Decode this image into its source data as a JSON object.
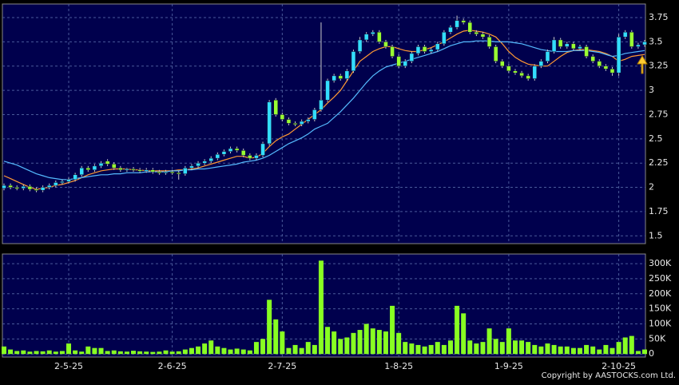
{
  "chart_data": [
    {
      "type": "candlestick",
      "up_color": "#33ddff",
      "down_color": "#99ff33",
      "ylim": [
        1.42,
        3.89
      ],
      "yticks": [
        1.5,
        1.75,
        2,
        2.25,
        2.5,
        2.75,
        3,
        3.25,
        3.5,
        3.75
      ],
      "grid": true,
      "open": [
        1.99,
        2.02,
        2.0,
        1.99,
        2.01,
        1.98,
        1.97,
        2.0,
        2.02,
        2.05,
        2.06,
        2.08,
        2.13,
        2.2,
        2.18,
        2.22,
        2.27,
        2.24,
        2.2,
        2.18,
        2.19,
        2.18,
        2.17,
        2.18,
        2.16,
        2.15,
        2.16,
        2.15,
        2.14,
        2.2,
        2.22,
        2.25,
        2.27,
        2.3,
        2.34,
        2.37,
        2.4,
        2.38,
        2.33,
        2.3,
        2.33,
        2.45,
        2.9,
        2.75,
        2.7,
        2.66,
        2.65,
        2.68,
        2.7,
        2.8,
        2.9,
        3.1,
        3.15,
        3.12,
        3.2,
        3.4,
        3.52,
        3.58,
        3.6,
        3.5,
        3.45,
        3.35,
        3.25,
        3.3,
        3.38,
        3.45,
        3.4,
        3.42,
        3.48,
        3.6,
        3.65,
        3.72,
        3.7,
        3.6,
        3.58,
        3.55,
        3.45,
        3.3,
        3.25,
        3.2,
        3.18,
        3.15,
        3.12,
        3.25,
        3.3,
        3.4,
        3.52,
        3.45,
        3.48,
        3.43,
        3.45,
        3.35,
        3.3,
        3.25,
        3.22,
        3.18,
        3.55,
        3.6,
        3.45,
        3.47
      ],
      "high": [
        2.04,
        2.04,
        2.02,
        2.03,
        2.03,
        2.0,
        2.02,
        2.04,
        2.07,
        2.08,
        2.1,
        2.15,
        2.22,
        2.22,
        2.24,
        2.27,
        2.29,
        2.26,
        2.22,
        2.2,
        2.21,
        2.2,
        2.2,
        2.2,
        2.18,
        2.18,
        2.18,
        2.17,
        2.22,
        2.24,
        2.27,
        2.29,
        2.32,
        2.36,
        2.39,
        2.42,
        2.42,
        2.4,
        2.35,
        2.35,
        2.47,
        2.9,
        2.92,
        2.77,
        2.72,
        2.68,
        2.7,
        2.72,
        2.82,
        3.7,
        3.12,
        3.17,
        3.17,
        3.22,
        3.42,
        3.55,
        3.6,
        3.62,
        3.62,
        3.52,
        3.47,
        3.37,
        3.32,
        3.4,
        3.47,
        3.47,
        3.44,
        3.5,
        3.62,
        3.67,
        3.77,
        3.74,
        3.72,
        3.62,
        3.6,
        3.57,
        3.47,
        3.32,
        3.27,
        3.22,
        3.2,
        3.17,
        3.27,
        3.32,
        3.42,
        3.55,
        3.54,
        3.5,
        3.5,
        3.47,
        3.47,
        3.37,
        3.32,
        3.27,
        3.24,
        3.58,
        3.62,
        3.62,
        3.49,
        3.52
      ],
      "low": [
        1.97,
        1.98,
        1.97,
        1.97,
        1.96,
        1.95,
        1.95,
        1.98,
        2.0,
        2.03,
        2.04,
        2.06,
        2.11,
        2.16,
        2.16,
        2.2,
        2.22,
        2.18,
        2.16,
        2.16,
        2.16,
        2.15,
        2.15,
        2.14,
        2.13,
        2.13,
        2.13,
        2.08,
        2.12,
        2.18,
        2.2,
        2.23,
        2.25,
        2.28,
        2.32,
        2.35,
        2.36,
        2.31,
        2.28,
        2.28,
        2.31,
        2.43,
        2.73,
        2.68,
        2.64,
        2.63,
        2.63,
        2.66,
        2.68,
        2.78,
        2.88,
        3.08,
        3.1,
        3.1,
        3.18,
        3.38,
        3.5,
        3.56,
        3.48,
        3.43,
        3.33,
        3.23,
        3.23,
        3.28,
        3.36,
        3.38,
        3.38,
        3.4,
        3.46,
        3.58,
        3.63,
        3.68,
        3.58,
        3.56,
        3.53,
        3.43,
        3.28,
        3.23,
        3.18,
        3.16,
        3.13,
        3.1,
        3.1,
        3.23,
        3.28,
        3.38,
        3.43,
        3.43,
        3.41,
        3.41,
        3.33,
        3.28,
        3.23,
        3.2,
        3.15,
        3.15,
        3.53,
        3.43,
        3.43,
        3.45
      ],
      "close": [
        2.02,
        2.0,
        1.99,
        2.01,
        1.98,
        1.97,
        2.0,
        2.02,
        2.05,
        2.06,
        2.08,
        2.13,
        2.2,
        2.18,
        2.22,
        2.25,
        2.24,
        2.2,
        2.18,
        2.19,
        2.18,
        2.17,
        2.18,
        2.16,
        2.15,
        2.16,
        2.15,
        2.14,
        2.2,
        2.22,
        2.25,
        2.27,
        2.3,
        2.34,
        2.37,
        2.4,
        2.38,
        2.33,
        2.3,
        2.33,
        2.45,
        2.88,
        2.75,
        2.7,
        2.66,
        2.65,
        2.68,
        2.7,
        2.8,
        2.9,
        3.1,
        3.15,
        3.12,
        3.2,
        3.4,
        3.52,
        3.58,
        3.6,
        3.5,
        3.45,
        3.35,
        3.25,
        3.3,
        3.38,
        3.45,
        3.4,
        3.42,
        3.48,
        3.6,
        3.65,
        3.72,
        3.7,
        3.6,
        3.58,
        3.55,
        3.45,
        3.3,
        3.25,
        3.2,
        3.18,
        3.15,
        3.12,
        3.25,
        3.3,
        3.4,
        3.52,
        3.45,
        3.48,
        3.43,
        3.45,
        3.35,
        3.3,
        3.25,
        3.22,
        3.18,
        3.55,
        3.6,
        3.45,
        3.47,
        3.5
      ],
      "lines": [
        {
          "color": "#ff9933",
          "values": [
            2.12,
            2.09,
            2.06,
            2.03,
            2.0,
            1.98,
            1.99,
            2.0,
            2.02,
            2.03,
            2.05,
            2.07,
            2.1,
            2.13,
            2.15,
            2.17,
            2.18,
            2.19,
            2.19,
            2.19,
            2.18,
            2.18,
            2.17,
            2.17,
            2.17,
            2.17,
            2.17,
            2.18,
            2.18,
            2.19,
            2.2,
            2.22,
            2.24,
            2.26,
            2.28,
            2.3,
            2.32,
            2.32,
            2.3,
            2.31,
            2.35,
            2.42,
            2.48,
            2.52,
            2.55,
            2.6,
            2.65,
            2.7,
            2.75,
            2.8,
            2.87,
            2.93,
            3.0,
            3.1,
            3.2,
            3.3,
            3.35,
            3.4,
            3.43,
            3.45,
            3.45,
            3.43,
            3.41,
            3.4,
            3.4,
            3.42,
            3.44,
            3.47,
            3.5,
            3.54,
            3.58,
            3.61,
            3.62,
            3.61,
            3.6,
            3.58,
            3.55,
            3.48,
            3.4,
            3.34,
            3.3,
            3.27,
            3.26,
            3.25,
            3.25,
            3.3,
            3.35,
            3.39,
            3.41,
            3.42,
            3.42,
            3.41,
            3.4,
            3.38,
            3.35,
            3.3,
            3.32,
            3.35,
            3.36,
            3.37
          ]
        },
        {
          "color": "#55bbff",
          "values": [
            2.27,
            2.25,
            2.23,
            2.2,
            2.17,
            2.14,
            2.12,
            2.1,
            2.09,
            2.08,
            2.08,
            2.09,
            2.1,
            2.11,
            2.12,
            2.13,
            2.13,
            2.14,
            2.14,
            2.15,
            2.15,
            2.15,
            2.16,
            2.16,
            2.16,
            2.16,
            2.17,
            2.17,
            2.18,
            2.18,
            2.19,
            2.19,
            2.2,
            2.21,
            2.22,
            2.23,
            2.24,
            2.26,
            2.27,
            2.28,
            2.3,
            2.33,
            2.37,
            2.41,
            2.45,
            2.48,
            2.51,
            2.55,
            2.6,
            2.63,
            2.66,
            2.72,
            2.78,
            2.85,
            2.92,
            3.0,
            3.08,
            3.15,
            3.2,
            3.24,
            3.26,
            3.28,
            3.3,
            3.32,
            3.34,
            3.36,
            3.38,
            3.4,
            3.43,
            3.46,
            3.48,
            3.5,
            3.5,
            3.51,
            3.51,
            3.51,
            3.5,
            3.5,
            3.5,
            3.49,
            3.48,
            3.46,
            3.44,
            3.42,
            3.41,
            3.4,
            3.4,
            3.4,
            3.41,
            3.41,
            3.41,
            3.4,
            3.39,
            3.37,
            3.35,
            3.36,
            3.38,
            3.39,
            3.4,
            3.41
          ]
        }
      ]
    },
    {
      "type": "bar",
      "color": "#88ff22",
      "ylim": [
        -10000,
        332000
      ],
      "yticks": [
        0,
        {
          "value": 50000,
          "label": "50K"
        },
        {
          "value": 100000,
          "label": "100K"
        },
        {
          "value": 150000,
          "label": "150K"
        },
        {
          "value": 200000,
          "label": "200K"
        },
        {
          "value": 250000,
          "label": "250K"
        },
        {
          "value": 300000,
          "label": "300K"
        }
      ],
      "grid": true,
      "categories": [
        null,
        null,
        null,
        null,
        null,
        null,
        null,
        null,
        null,
        null,
        "2-5-25",
        null,
        null,
        null,
        null,
        null,
        null,
        null,
        null,
        null,
        null,
        null,
        null,
        null,
        null,
        null,
        "2-6-25",
        null,
        null,
        null,
        null,
        null,
        null,
        null,
        null,
        null,
        null,
        null,
        null,
        null,
        null,
        null,
        null,
        "2-7-25",
        null,
        null,
        null,
        null,
        null,
        null,
        null,
        null,
        null,
        null,
        null,
        null,
        null,
        null,
        null,
        null,
        null,
        "1-8-25",
        null,
        null,
        null,
        null,
        null,
        null,
        null,
        null,
        null,
        null,
        null,
        null,
        null,
        null,
        null,
        null,
        "1-9-25",
        null,
        null,
        null,
        null,
        null,
        null,
        null,
        null,
        null,
        null,
        null,
        null,
        null,
        null,
        null,
        null,
        "2-10-25",
        null,
        null,
        null,
        null
      ],
      "values": [
        25000,
        15000,
        10000,
        12000,
        8000,
        10000,
        9000,
        12000,
        8000,
        10000,
        35000,
        12000,
        8000,
        25000,
        20000,
        20000,
        10000,
        12000,
        9000,
        8000,
        11000,
        9000,
        8000,
        7000,
        8000,
        12000,
        8000,
        9000,
        15000,
        20000,
        25000,
        35000,
        45000,
        25000,
        20000,
        15000,
        18000,
        15000,
        12000,
        40000,
        50000,
        180000,
        115000,
        75000,
        20000,
        30000,
        20000,
        40000,
        30000,
        310000,
        90000,
        75000,
        50000,
        55000,
        70000,
        80000,
        100000,
        85000,
        80000,
        75000,
        160000,
        70000,
        40000,
        35000,
        30000,
        25000,
        30000,
        40000,
        30000,
        45000,
        160000,
        135000,
        45000,
        35000,
        40000,
        85000,
        50000,
        40000,
        85000,
        45000,
        45000,
        40000,
        30000,
        25000,
        35000,
        30000,
        25000,
        25000,
        20000,
        20000,
        30000,
        25000,
        15000,
        30000,
        20000,
        40000,
        55000,
        60000,
        10000,
        15000
      ]
    },
    {
      "copyright": "Copyright by AASTOCKS.com Ltd."
    }
  ]
}
